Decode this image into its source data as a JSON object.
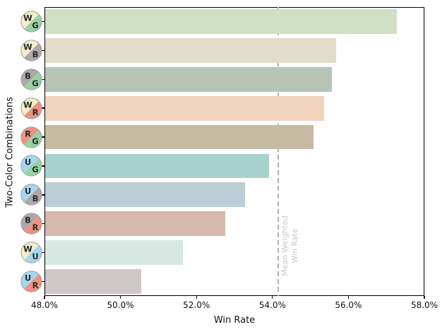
{
  "figure": {
    "background": "#ffffff"
  },
  "chart_data": {
    "type": "bar",
    "orientation": "horizontal",
    "title": "",
    "xlabel": "Win Rate",
    "ylabel": "Two-Color Combinations",
    "xlim": [
      48.0,
      58.0
    ],
    "grid": false,
    "legend": false,
    "x_tick_values": [
      48,
      50,
      52,
      54,
      56,
      58
    ],
    "x_tick_labels": [
      "48.0%",
      "50.0%",
      "52.0%",
      "54.0%",
      "56.0%",
      "58.0%"
    ],
    "categories": [
      "WG",
      "WB",
      "BG",
      "WR",
      "RG",
      "UG",
      "UB",
      "BR",
      "WU",
      "UR"
    ],
    "values": [
      57.28,
      55.67,
      55.56,
      55.36,
      55.08,
      53.91,
      53.28,
      52.76,
      51.65,
      50.54
    ],
    "bar_colors": [
      "#cfe0c3",
      "#e2dcca",
      "#b5c6b9",
      "#f2d3bc",
      "#c4bba2",
      "#a8d2cd",
      "#bccfd8",
      "#d7b8ac",
      "#d5e8e1",
      "#d0c7c8"
    ],
    "icon_colors": {
      "W": "#f3eec9",
      "U": "#a5d6f0",
      "B": "#b0a7a9",
      "R": "#ee9180",
      "G": "#99d1a4"
    },
    "icon_outline_color": "#999999",
    "icon_letter_color": "#2b2b2b",
    "mean_line": {
      "value": 54.15,
      "color": "#b2b2b2",
      "label_line1": "Mean Weighted",
      "label_line2": "Win Rate",
      "label_color": "#c8c8c8"
    }
  }
}
